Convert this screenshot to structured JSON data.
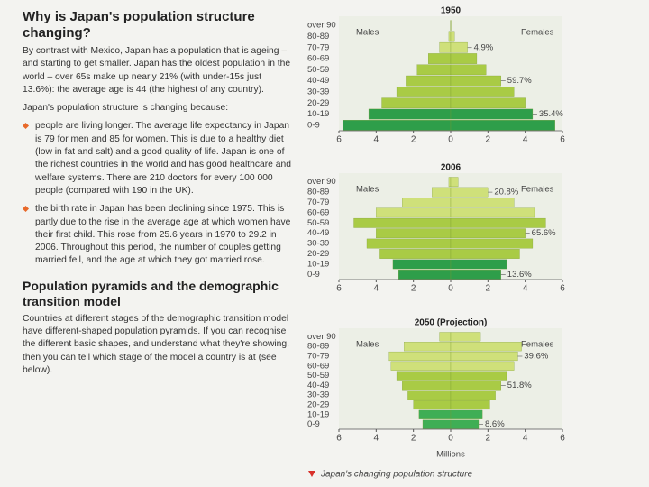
{
  "text": {
    "heading": "Why is Japan's population structure changing?",
    "intro": "By contrast with Mexico, Japan has a population that is ageing – and starting to get smaller. Japan has the oldest population in the world – over 65s make up nearly 21% (with under-15s just 13.6%): the average age is 44 (the highest of any country).",
    "lead": "Japan's population structure is changing because:",
    "bullets": [
      "people are living longer. The average life expectancy in Japan is 79 for men and 85 for women. This is due to a healthy diet (low in fat and salt) and a good quality of life. Japan is one of the richest countries in the world and has good healthcare and welfare systems. There are 210 doctors for every 100 000 people (compared with 190 in the UK).",
      "the birth rate in Japan has been declining since 1975. This is partly due to the rise in the average age at which women have their first child. This rose from 25.6 years in 1970 to 29.2 in 2006. Throughout this period, the number of couples getting married fell, and the age at which they got married rose."
    ],
    "subheading": "Population pyramids and the demographic transition model",
    "body": "Countries at different stages of the demographic transition model have different-shaped population pyramids. If you can recognise the different basic shapes, and understand what they're showing, then you can tell which stage of the model a country is at (see below).",
    "caption": "Japan's changing population structure"
  },
  "chart_data": [
    {
      "type": "pyramid",
      "title": "1950",
      "categories": [
        "over 90",
        "80-89",
        "70-79",
        "60-69",
        "50-59",
        "40-49",
        "30-39",
        "20-29",
        "10-19",
        "0-9"
      ],
      "series": [
        {
          "name": "Males",
          "values": [
            0.01,
            0.1,
            0.6,
            1.2,
            1.8,
            2.4,
            2.9,
            3.7,
            4.4,
            5.8
          ]
        },
        {
          "name": "Females",
          "values": [
            0.02,
            0.2,
            0.9,
            1.4,
            1.9,
            2.7,
            3.4,
            4.0,
            4.4,
            5.6
          ]
        }
      ],
      "bar_colors": [
        "#cfe07a",
        "#cfe07a",
        "#cfe07a",
        "#a9cb45",
        "#a9cb45",
        "#a9cb45",
        "#a9cb45",
        "#a9cb45",
        "#2e9e4a",
        "#2e9e4a"
      ],
      "annotations": [
        {
          "text": "4.9%",
          "category": "70-79"
        },
        {
          "text": "59.7%",
          "category": "40-49"
        },
        {
          "text": "35.4%",
          "category": "10-19"
        }
      ],
      "xlim": [
        -6,
        6
      ],
      "xticks": [
        {
          "value": -6,
          "label": "6"
        },
        {
          "value": -4,
          "label": "4"
        },
        {
          "value": -2,
          "label": "2"
        },
        0,
        2,
        4,
        6
      ]
    },
    {
      "type": "pyramid",
      "title": "2006",
      "categories": [
        "over 90",
        "80-89",
        "70-79",
        "60-69",
        "50-59",
        "40-49",
        "30-39",
        "20-29",
        "10-19",
        "0-9"
      ],
      "series": [
        {
          "name": "Males",
          "values": [
            0.1,
            1.0,
            2.6,
            4.0,
            5.2,
            4.0,
            4.5,
            3.8,
            3.1,
            2.8
          ]
        },
        {
          "name": "Females",
          "values": [
            0.4,
            2.0,
            3.4,
            4.5,
            5.1,
            4.0,
            4.4,
            3.7,
            3.0,
            2.7
          ]
        }
      ],
      "bar_colors": [
        "#cfe07a",
        "#cfe07a",
        "#cfe07a",
        "#cfe07a",
        "#a9cb45",
        "#a9cb45",
        "#a9cb45",
        "#a9cb45",
        "#2e9e4a",
        "#2e9e4a"
      ],
      "annotations": [
        {
          "text": "20.8%",
          "category": "80-89"
        },
        {
          "text": "65.6%",
          "category": "40-49"
        },
        {
          "text": "13.6%",
          "category": "0-9"
        }
      ],
      "xlim": [
        -6,
        6
      ],
      "xticks": [
        {
          "value": -6,
          "label": "6"
        },
        {
          "value": -4,
          "label": "4"
        },
        {
          "value": -2,
          "label": "2"
        },
        0,
        2,
        4,
        6
      ]
    },
    {
      "type": "pyramid",
      "title": "2050 (Projection)",
      "categories": [
        "over 90",
        "80-89",
        "70-79",
        "60-69",
        "50-59",
        "40-49",
        "30-39",
        "20-29",
        "10-19",
        "0-9"
      ],
      "series": [
        {
          "name": "Males",
          "values": [
            0.6,
            2.5,
            3.3,
            3.2,
            2.9,
            2.6,
            2.3,
            2.0,
            1.7,
            1.5
          ]
        },
        {
          "name": "Females",
          "values": [
            1.6,
            3.8,
            3.6,
            3.4,
            3.0,
            2.7,
            2.4,
            2.1,
            1.7,
            1.5
          ]
        }
      ],
      "bar_colors": [
        "#cfe07a",
        "#cfe07a",
        "#cfe07a",
        "#cfe07a",
        "#a9cb45",
        "#a9cb45",
        "#a9cb45",
        "#a9cb45",
        "#3fae55",
        "#3fae55"
      ],
      "annotations": [
        {
          "text": "39.6%",
          "category": "70-79"
        },
        {
          "text": "51.8%",
          "category": "40-49"
        },
        {
          "text": "8.6%",
          "category": "0-9"
        }
      ],
      "xlabel": "Millions",
      "xlim": [
        -6,
        6
      ],
      "xticks": [
        {
          "value": -6,
          "label": "6"
        },
        {
          "value": -4,
          "label": "4"
        },
        {
          "value": -2,
          "label": "2"
        },
        0,
        2,
        4,
        6
      ]
    }
  ]
}
